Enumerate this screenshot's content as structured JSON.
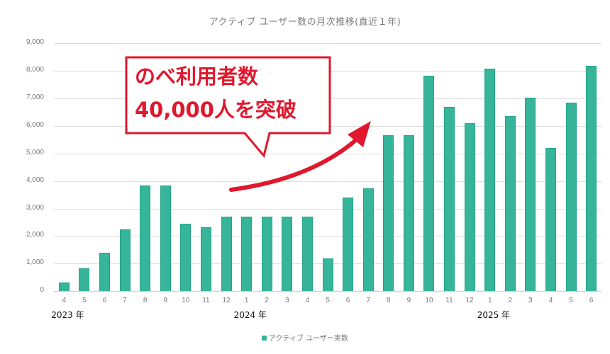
{
  "chart_data": {
    "type": "bar",
    "title": "アクティブ ユーザー数の月次推移(直近１年)",
    "xlabel": "",
    "ylabel": "",
    "ylim": [
      0,
      9000
    ],
    "yticks": [
      0,
      1000,
      2000,
      3000,
      4000,
      5000,
      6000,
      7000,
      8000,
      9000
    ],
    "ytick_labels": [
      "0",
      "1,000",
      "2,000",
      "3,000",
      "4,000",
      "5,000",
      "6,000",
      "7,000",
      "8,000",
      "9,000"
    ],
    "grid": true,
    "legend_position": "bottom",
    "categories": [
      "2023-04",
      "2023-05",
      "2023-06",
      "2023-07",
      "2023-08",
      "2023-09",
      "2023-10",
      "2023-11",
      "2023-12",
      "2024-01",
      "2024-02",
      "2024-03",
      "2024-04",
      "2024-05",
      "2024-06",
      "2024-07",
      "2024-08",
      "2024-09",
      "2024-10",
      "2024-11",
      "2024-12",
      "2025-01",
      "2025-02",
      "2025-03",
      "2025-04",
      "2025-05",
      "2025-06"
    ],
    "month_labels": [
      "4",
      "5",
      "6",
      "7",
      "8",
      "9",
      "10",
      "11",
      "12",
      "1",
      "2",
      "3",
      "4",
      "5",
      "6",
      "7",
      "8",
      "9",
      "10",
      "11",
      "12",
      "1",
      "2",
      "3",
      "4",
      "5",
      "6"
    ],
    "year_labels": [
      {
        "label": "2023 年",
        "at_index": 0
      },
      {
        "label": "2024 年",
        "at_index": 9
      },
      {
        "label": "2025 年",
        "at_index": 21
      }
    ],
    "series": [
      {
        "name": "アクティブ ユーザー実数",
        "color": "#37b59a",
        "values": [
          320,
          820,
          1390,
          2250,
          3830,
          3830,
          2450,
          2310,
          2700,
          2700,
          2700,
          2700,
          2700,
          1190,
          3390,
          3740,
          5650,
          5670,
          7820,
          6690,
          6100,
          8080,
          6360,
          7020,
          5200,
          6840,
          8180
        ]
      }
    ],
    "annotations": [
      {
        "type": "callout",
        "lines": [
          "のべ利用者数",
          "40,000人を突破"
        ],
        "color": "#e0182d"
      },
      {
        "type": "arrow",
        "direction": "up-right",
        "color": "#e0182d"
      }
    ]
  },
  "title": "アクティブ ユーザー数の月次推移(直近１年)",
  "legend": {
    "label": "アクティブ ユーザー実数"
  },
  "callout": {
    "line1": "のべ利用者数",
    "line2": "40,000人を突破"
  }
}
